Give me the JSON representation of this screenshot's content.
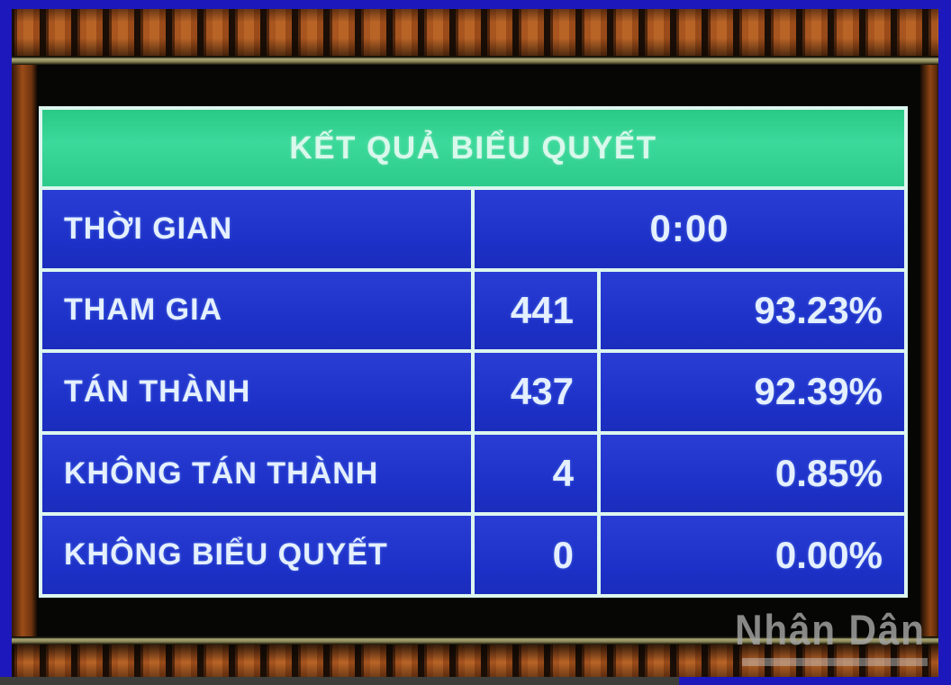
{
  "screen": {
    "title": "KẾT QUẢ BIỂU QUYẾT",
    "time": {
      "label": "THỜI GIAN",
      "value": "0:00"
    },
    "rows": [
      {
        "label": "THAM GIA",
        "count": "441",
        "percent": "93.23%"
      },
      {
        "label": "TÁN THÀNH",
        "count": "437",
        "percent": "92.39%"
      },
      {
        "label": "KHÔNG TÁN THÀNH",
        "count": "4",
        "percent": "0.85%"
      },
      {
        "label": "KHÔNG BIỂU QUYẾT",
        "count": "0",
        "percent": "0.00%"
      }
    ]
  },
  "watermark": {
    "text": "Nhân Dân"
  },
  "colors": {
    "header_green": "#2dcb8b",
    "cell_blue": "#1e33d2",
    "grid_line": "#ddf6ef",
    "frame_blue": "#1d18bb",
    "wood_orange": "#a8551f",
    "trim_tan": "#a8a476"
  },
  "chart_data": {
    "type": "table",
    "title": "KẾT QUẢ BIỂU QUYẾT",
    "columns": [
      "label",
      "count",
      "percent"
    ],
    "rows": [
      [
        "THỜI GIAN",
        "0:00",
        ""
      ],
      [
        "THAM GIA",
        "441",
        "93.23%"
      ],
      [
        "TÁN THÀNH",
        "437",
        "92.39%"
      ],
      [
        "KHÔNG TÁN THÀNH",
        "4",
        "0.85%"
      ],
      [
        "KHÔNG BIỂU QUYẾT",
        "0",
        "0.00%"
      ]
    ]
  }
}
